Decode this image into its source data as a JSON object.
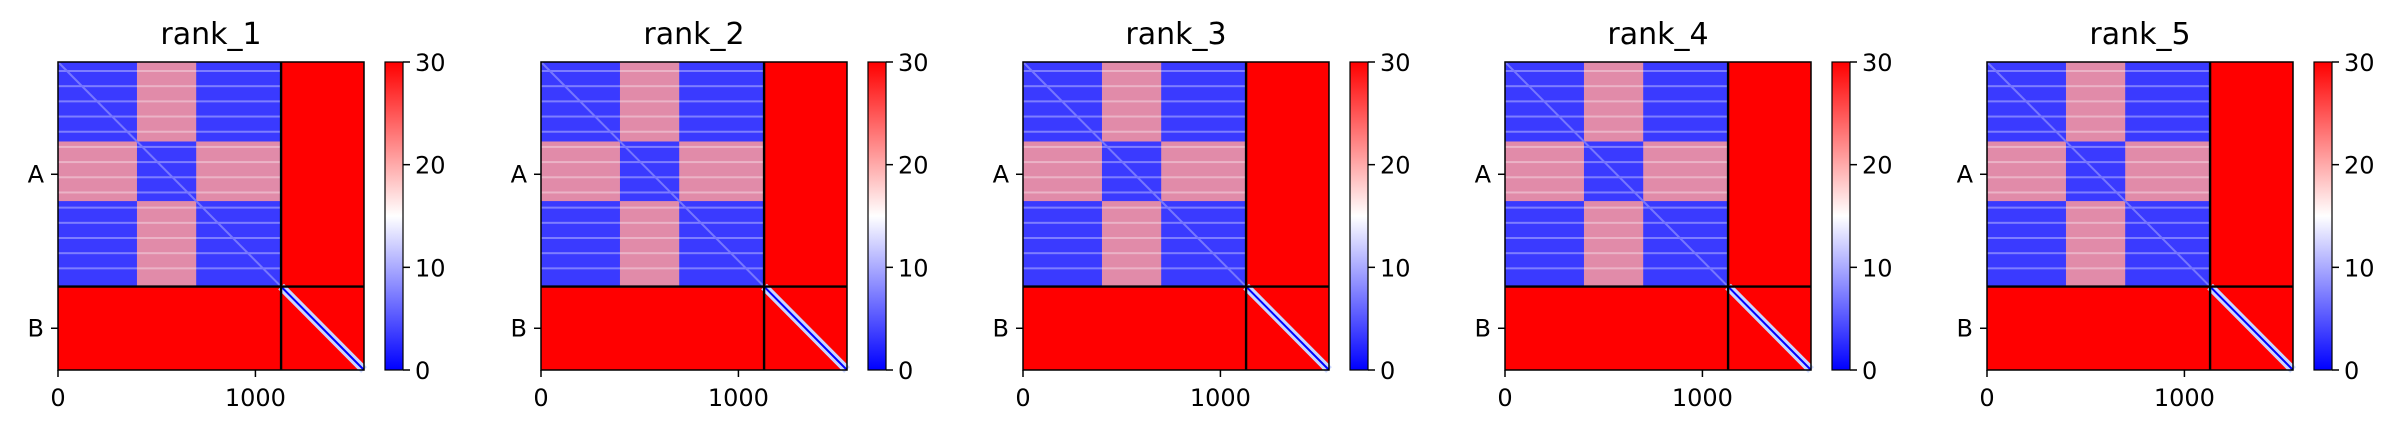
{
  "figure": {
    "panels": [
      {
        "title": "rank_1"
      },
      {
        "title": "rank_2"
      },
      {
        "title": "rank_3"
      },
      {
        "title": "rank_4"
      },
      {
        "title": "rank_5"
      }
    ]
  },
  "chart_data": {
    "type": "heatmap",
    "panels": [
      "rank_1",
      "rank_2",
      "rank_3",
      "rank_4",
      "rank_5"
    ],
    "x_ticks": [
      {
        "value": 0,
        "label": "0"
      },
      {
        "value": 1000,
        "label": "1000"
      }
    ],
    "x_range": [
      0,
      1550
    ],
    "y_ticks": [
      {
        "label": "A"
      },
      {
        "label": "B"
      }
    ],
    "chain_break": 1130,
    "colorbar": {
      "min": 0,
      "max": 30,
      "ticks": [
        {
          "value": 0,
          "label": "0"
        },
        {
          "value": 10,
          "label": "10"
        },
        {
          "value": 20,
          "label": "20"
        },
        {
          "value": 30,
          "label": "30"
        }
      ],
      "colors": [
        "#0000ff",
        "#ffffff",
        "#ff0000"
      ]
    },
    "grid": false,
    "legend": "none"
  }
}
